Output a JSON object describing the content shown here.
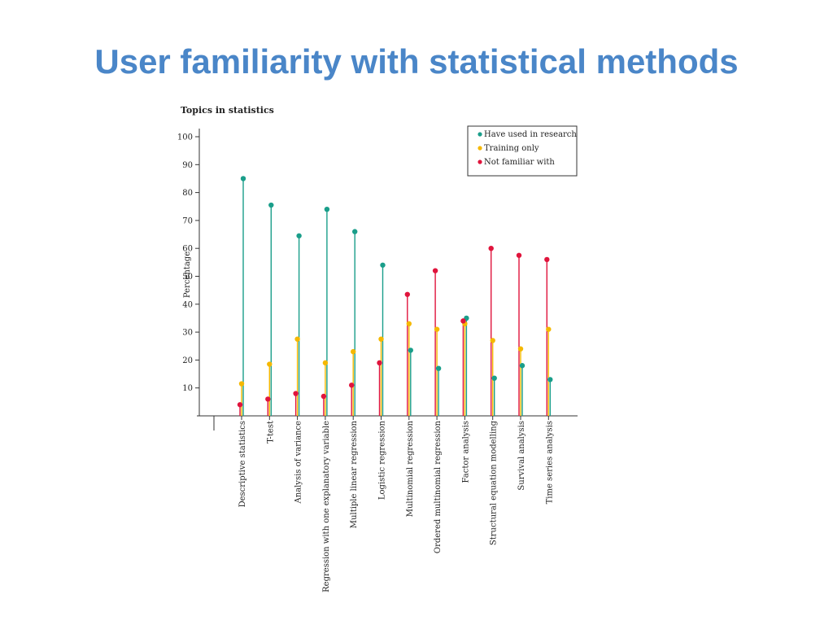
{
  "slide": {
    "title": "User familiarity with statistical methods"
  },
  "colors": {
    "title": "#4a86c8",
    "used": "#1a9e8a",
    "training": "#f5b800",
    "not_familiar": "#e0143c",
    "axis": "#333333"
  },
  "chart_data": {
    "type": "scatter",
    "subtype": "lollipop",
    "title": "Topics in statistics",
    "ylabel": "Percentage",
    "xlabel": "",
    "ylim": [
      0,
      100
    ],
    "yticks": [
      10,
      20,
      30,
      40,
      50,
      60,
      70,
      80,
      90,
      100
    ],
    "grid": false,
    "legend_position": "top-right",
    "categories": [
      "Descriptive statistics",
      "T-test",
      "Analysis of variance",
      "Regression with one explanatory variable",
      "Multiple linear regression",
      "Logistic regression",
      "Multinomial regression",
      "Ordered multinomial regression",
      "Factor analysis",
      "Structural equation modelling",
      "Survival analysis",
      "Time series analysis"
    ],
    "series": [
      {
        "name": "Have used in research",
        "color_key": "used",
        "values": [
          85,
          75.5,
          64.5,
          74,
          66,
          54,
          23.5,
          17,
          35,
          13.5,
          18,
          13
        ]
      },
      {
        "name": "Training only",
        "color_key": "training",
        "values": [
          11.5,
          18.5,
          27.5,
          19,
          23,
          27.5,
          33,
          31,
          33,
          27,
          24,
          31
        ]
      },
      {
        "name": "Not familiar with",
        "color_key": "not_familiar",
        "values": [
          4,
          6,
          8,
          7,
          11,
          19,
          43.5,
          52,
          34,
          60,
          57.5,
          56
        ]
      }
    ]
  }
}
